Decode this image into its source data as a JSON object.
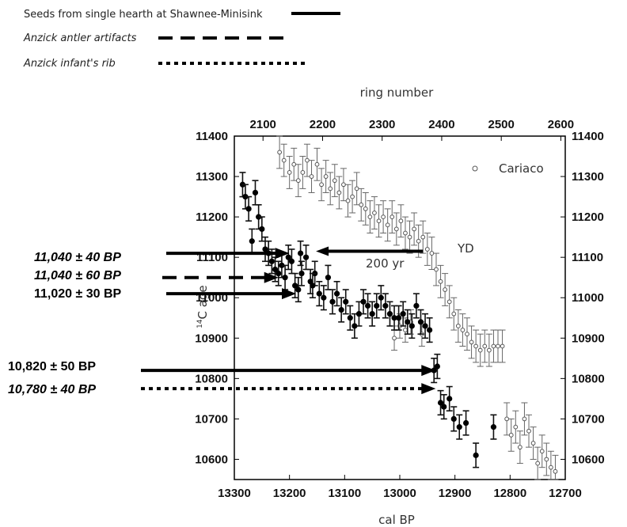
{
  "legend": [
    {
      "label": "Seeds from single hearth at Shawnee-Minisink",
      "style": "solid",
      "italic": false
    },
    {
      "label": "Anzick antler artifacts",
      "style": "dashed",
      "italic": true
    },
    {
      "label": "Anzick infant's rib",
      "style": "dotted",
      "italic": true
    }
  ],
  "chart_data": {
    "type": "scatter",
    "xlabel": "cal BP",
    "x2label": "ring number",
    "ylabel": "14C age",
    "xlim": [
      13300,
      12700
    ],
    "x_reversed": true,
    "ylim": [
      10550,
      11400
    ],
    "xticks": [
      13300,
      13200,
      13100,
      13000,
      12900,
      12800,
      12700
    ],
    "yticks": [
      10600,
      10700,
      10800,
      10900,
      11000,
      11100,
      11200,
      11300,
      11400
    ],
    "ring_ticks": [
      2100,
      2200,
      2300,
      2400,
      2500,
      2600
    ],
    "ring_axis_map": {
      "ring_a": 2100,
      "calbp_a": 13248,
      "ring_b": 2600,
      "calbp_b": 12708
    },
    "series": [
      {
        "name": "Cariaco",
        "marker": "open-circle",
        "points": [
          {
            "x": 13218,
            "y": 11360,
            "err": 40
          },
          {
            "x": 13210,
            "y": 11340,
            "err": 40
          },
          {
            "x": 13200,
            "y": 11310,
            "err": 40
          },
          {
            "x": 13192,
            "y": 11330,
            "err": 40
          },
          {
            "x": 13184,
            "y": 11290,
            "err": 40
          },
          {
            "x": 13176,
            "y": 11310,
            "err": 40
          },
          {
            "x": 13168,
            "y": 11340,
            "err": 40
          },
          {
            "x": 13160,
            "y": 11300,
            "err": 40
          },
          {
            "x": 13150,
            "y": 11330,
            "err": 40
          },
          {
            "x": 13142,
            "y": 11280,
            "err": 40
          },
          {
            "x": 13134,
            "y": 11300,
            "err": 40
          },
          {
            "x": 13126,
            "y": 11270,
            "err": 40
          },
          {
            "x": 13118,
            "y": 11290,
            "err": 40
          },
          {
            "x": 13110,
            "y": 11260,
            "err": 40
          },
          {
            "x": 13102,
            "y": 11280,
            "err": 40
          },
          {
            "x": 13094,
            "y": 11240,
            "err": 40
          },
          {
            "x": 13086,
            "y": 11250,
            "err": 40
          },
          {
            "x": 13078,
            "y": 11270,
            "err": 40
          },
          {
            "x": 13070,
            "y": 11230,
            "err": 40
          },
          {
            "x": 13062,
            "y": 11220,
            "err": 40
          },
          {
            "x": 13054,
            "y": 11200,
            "err": 40
          },
          {
            "x": 13046,
            "y": 11210,
            "err": 40
          },
          {
            "x": 13038,
            "y": 11190,
            "err": 40
          },
          {
            "x": 13030,
            "y": 11200,
            "err": 40
          },
          {
            "x": 13022,
            "y": 11180,
            "err": 40
          },
          {
            "x": 13014,
            "y": 11200,
            "err": 40
          },
          {
            "x": 13006,
            "y": 11170,
            "err": 40
          },
          {
            "x": 12998,
            "y": 11190,
            "err": 40
          },
          {
            "x": 12990,
            "y": 11160,
            "err": 40
          },
          {
            "x": 12982,
            "y": 11150,
            "err": 40
          },
          {
            "x": 12974,
            "y": 11170,
            "err": 40
          },
          {
            "x": 12966,
            "y": 11140,
            "err": 40
          },
          {
            "x": 12958,
            "y": 11150,
            "err": 40
          },
          {
            "x": 12950,
            "y": 11120,
            "err": 40
          },
          {
            "x": 12942,
            "y": 11110,
            "err": 40
          },
          {
            "x": 12934,
            "y": 11070,
            "err": 40
          },
          {
            "x": 12926,
            "y": 11040,
            "err": 40
          },
          {
            "x": 12918,
            "y": 11020,
            "err": 40
          },
          {
            "x": 12910,
            "y": 10990,
            "err": 40
          },
          {
            "x": 12902,
            "y": 10960,
            "err": 40
          },
          {
            "x": 12894,
            "y": 10930,
            "err": 40
          },
          {
            "x": 12886,
            "y": 10920,
            "err": 40
          },
          {
            "x": 12878,
            "y": 10910,
            "err": 40
          },
          {
            "x": 12870,
            "y": 10890,
            "err": 40
          },
          {
            "x": 12862,
            "y": 10880,
            "err": 40
          },
          {
            "x": 12854,
            "y": 10870,
            "err": 40
          },
          {
            "x": 12846,
            "y": 10880,
            "err": 40
          },
          {
            "x": 12838,
            "y": 10870,
            "err": 40
          },
          {
            "x": 12830,
            "y": 10880,
            "err": 40
          },
          {
            "x": 12822,
            "y": 10880,
            "err": 40
          },
          {
            "x": 12814,
            "y": 10880,
            "err": 40
          },
          {
            "x": 12806,
            "y": 10700,
            "err": 40
          },
          {
            "x": 12798,
            "y": 10660,
            "err": 40
          },
          {
            "x": 12790,
            "y": 10680,
            "err": 40
          },
          {
            "x": 12782,
            "y": 10630,
            "err": 40
          },
          {
            "x": 12774,
            "y": 10700,
            "err": 40
          },
          {
            "x": 12766,
            "y": 10670,
            "err": 40
          },
          {
            "x": 12758,
            "y": 10640,
            "err": 40
          },
          {
            "x": 12750,
            "y": 10590,
            "err": 40
          },
          {
            "x": 12742,
            "y": 10620,
            "err": 40
          },
          {
            "x": 12734,
            "y": 10600,
            "err": 40
          },
          {
            "x": 12726,
            "y": 10580,
            "err": 40
          },
          {
            "x": 12718,
            "y": 10570,
            "err": 40
          },
          {
            "x": 13000,
            "y": 10930,
            "err": 30
          },
          {
            "x": 12990,
            "y": 10920,
            "err": 30
          },
          {
            "x": 12980,
            "y": 10940,
            "err": 30
          },
          {
            "x": 12960,
            "y": 10910,
            "err": 30
          },
          {
            "x": 13010,
            "y": 10900,
            "err": 30
          }
        ]
      },
      {
        "name": "",
        "marker": "filled-circle",
        "points": [
          {
            "x": 13285,
            "y": 11280,
            "err": 30
          },
          {
            "x": 13280,
            "y": 11250,
            "err": 30
          },
          {
            "x": 13274,
            "y": 11220,
            "err": 30
          },
          {
            "x": 13268,
            "y": 11140,
            "err": 30
          },
          {
            "x": 13262,
            "y": 11260,
            "err": 30
          },
          {
            "x": 13256,
            "y": 11200,
            "err": 30
          },
          {
            "x": 13250,
            "y": 11170,
            "err": 30
          },
          {
            "x": 13244,
            "y": 11120,
            "err": 30
          },
          {
            "x": 13238,
            "y": 11110,
            "err": 30
          },
          {
            "x": 13232,
            "y": 11090,
            "err": 30
          },
          {
            "x": 13226,
            "y": 11070,
            "err": 30
          },
          {
            "x": 13220,
            "y": 11060,
            "err": 30
          },
          {
            "x": 13214,
            "y": 11080,
            "err": 30
          },
          {
            "x": 13208,
            "y": 11050,
            "err": 30
          },
          {
            "x": 13202,
            "y": 11100,
            "err": 30
          },
          {
            "x": 13196,
            "y": 11090,
            "err": 30
          },
          {
            "x": 13190,
            "y": 11030,
            "err": 30
          },
          {
            "x": 13184,
            "y": 11020,
            "err": 30
          },
          {
            "x": 13178,
            "y": 11060,
            "err": 30
          },
          {
            "x": 13170,
            "y": 11100,
            "err": 30
          },
          {
            "x": 13162,
            "y": 11040,
            "err": 30
          },
          {
            "x": 13154,
            "y": 11060,
            "err": 30
          },
          {
            "x": 13146,
            "y": 11010,
            "err": 30
          },
          {
            "x": 13138,
            "y": 11000,
            "err": 30
          },
          {
            "x": 13130,
            "y": 11050,
            "err": 30
          },
          {
            "x": 13122,
            "y": 10990,
            "err": 30
          },
          {
            "x": 13114,
            "y": 11010,
            "err": 30
          },
          {
            "x": 13106,
            "y": 10970,
            "err": 30
          },
          {
            "x": 13098,
            "y": 10990,
            "err": 30
          },
          {
            "x": 13090,
            "y": 10950,
            "err": 30
          },
          {
            "x": 13082,
            "y": 10930,
            "err": 30
          },
          {
            "x": 13074,
            "y": 10960,
            "err": 30
          },
          {
            "x": 13066,
            "y": 10990,
            "err": 30
          },
          {
            "x": 13058,
            "y": 10980,
            "err": 30
          },
          {
            "x": 13050,
            "y": 10960,
            "err": 30
          },
          {
            "x": 13042,
            "y": 10980,
            "err": 30
          },
          {
            "x": 13034,
            "y": 11000,
            "err": 30
          },
          {
            "x": 13026,
            "y": 10980,
            "err": 30
          },
          {
            "x": 13018,
            "y": 10960,
            "err": 30
          },
          {
            "x": 13010,
            "y": 10950,
            "err": 30
          },
          {
            "x": 13002,
            "y": 10950,
            "err": 30
          },
          {
            "x": 12994,
            "y": 10960,
            "err": 30
          },
          {
            "x": 12986,
            "y": 10940,
            "err": 30
          },
          {
            "x": 12978,
            "y": 10930,
            "err": 30
          },
          {
            "x": 12970,
            "y": 10980,
            "err": 30
          },
          {
            "x": 12962,
            "y": 10940,
            "err": 30
          },
          {
            "x": 12954,
            "y": 10930,
            "err": 30
          },
          {
            "x": 12946,
            "y": 10920,
            "err": 30
          },
          {
            "x": 12938,
            "y": 10820,
            "err": 30
          },
          {
            "x": 12932,
            "y": 10830,
            "err": 30
          },
          {
            "x": 12926,
            "y": 10740,
            "err": 30
          },
          {
            "x": 12920,
            "y": 10730,
            "err": 30
          },
          {
            "x": 12910,
            "y": 10750,
            "err": 30
          },
          {
            "x": 12902,
            "y": 10700,
            "err": 30
          },
          {
            "x": 12892,
            "y": 10680,
            "err": 30
          },
          {
            "x": 12880,
            "y": 10690,
            "err": 30
          },
          {
            "x": 12862,
            "y": 10610,
            "err": 30
          },
          {
            "x": 12830,
            "y": 10680,
            "err": 30
          },
          {
            "x": 13180,
            "y": 11110,
            "err": 30
          },
          {
            "x": 13158,
            "y": 11030,
            "err": 30
          }
        ]
      }
    ]
  },
  "annotations": {
    "cariaco_label": "Cariaco",
    "yd_label": "YD",
    "span_label": "200 yr",
    "date1": "11,040 ± 40 BP",
    "date2": "11,040 ± 60 BP",
    "date3": "11,020 ± 30 BP",
    "date4": "10,820 ± 50 BP",
    "date5": "10,780 ± 40 BP",
    "ylabel_sup": "14",
    "ylabel_rest": "C age"
  },
  "arrows": [
    {
      "style": "solid",
      "tip_x": 13200,
      "tip_y": 11110
    },
    {
      "style": "dashed",
      "tip_x": 13220,
      "tip_y": 11050
    },
    {
      "style": "solid",
      "tip_x": 13188,
      "tip_y": 11010
    },
    {
      "style": "solid",
      "tip_x": 12935,
      "tip_y": 10820
    },
    {
      "style": "dotted",
      "tip_x": 12935,
      "tip_y": 10775
    }
  ],
  "yd_arrow": {
    "from_x": 12958,
    "to_x": 13152,
    "y": 11115
  }
}
